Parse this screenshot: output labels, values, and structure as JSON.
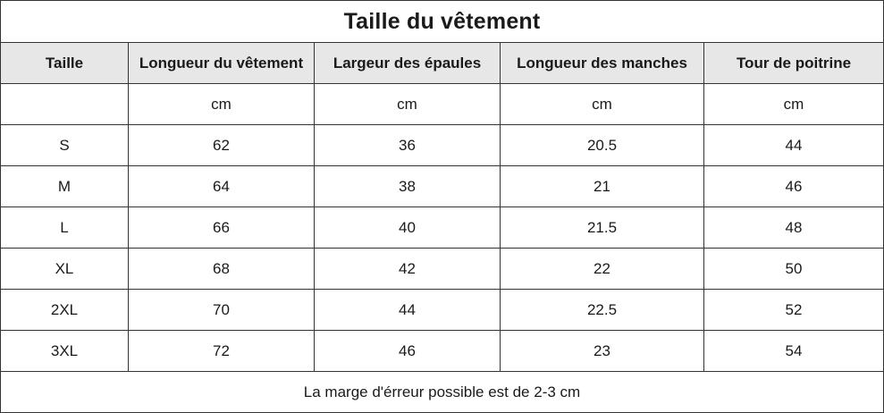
{
  "title": "Taille du vêtement",
  "headers": [
    "Taille",
    "Longueur du vêtement",
    "Largeur des épaules",
    "Longueur des manches",
    "Tour de poitrine"
  ],
  "units": [
    "",
    "cm",
    "cm",
    "cm",
    "cm"
  ],
  "rows": [
    [
      "S",
      "62",
      "36",
      "20.5",
      "44"
    ],
    [
      "M",
      "64",
      "38",
      "21",
      "46"
    ],
    [
      "L",
      "66",
      "40",
      "21.5",
      "48"
    ],
    [
      "XL",
      "68",
      "42",
      "22",
      "50"
    ],
    [
      "2XL",
      "70",
      "44",
      "22.5",
      "52"
    ],
    [
      "3XL",
      "72",
      "46",
      "23",
      "54"
    ]
  ],
  "note": "La marge d'érreur possible est de 2-3 cm",
  "colors": {
    "header_background": "#e7e7e7",
    "border": "#333333"
  }
}
